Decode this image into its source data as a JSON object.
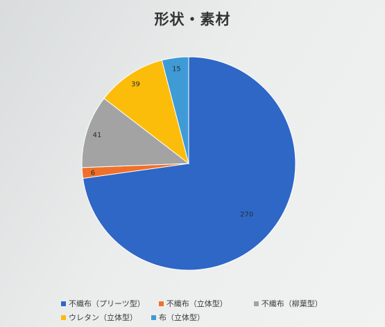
{
  "chart_data": {
    "type": "pie",
    "title": "形状・素材",
    "categories": [
      "不織布（プリーツ型）",
      "不織布（立体型）",
      "不織布（柳葉型）",
      "ウレタン（立体型）",
      "布（立体型）"
    ],
    "values": [
      270,
      6,
      41,
      39,
      15
    ],
    "colors": [
      "#2e67c6",
      "#f0702a",
      "#a3a3a3",
      "#fcbc0a",
      "#3f9bd6"
    ],
    "data_labels": [
      "270",
      "6",
      "41",
      "39",
      "15"
    ],
    "legend_position": "bottom"
  }
}
